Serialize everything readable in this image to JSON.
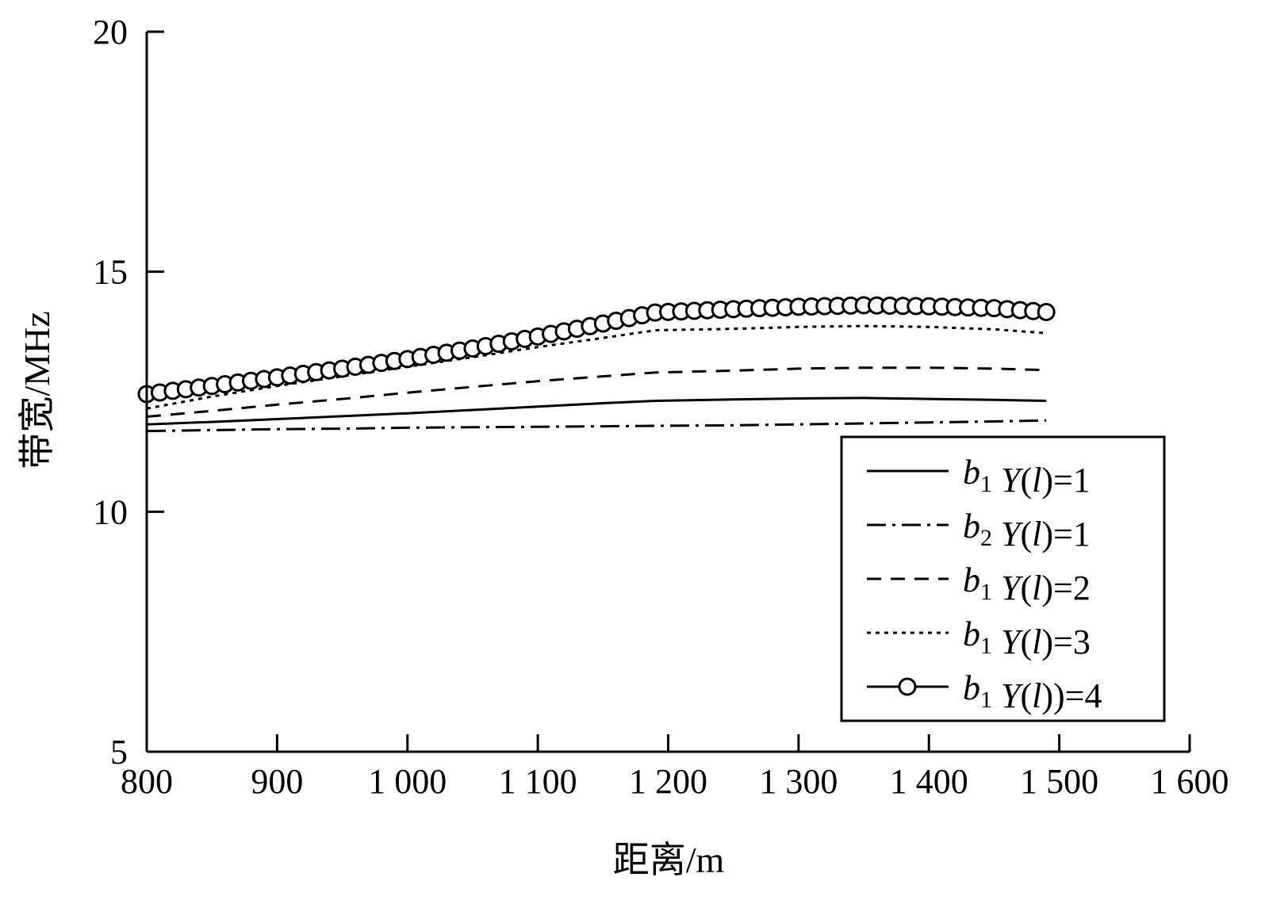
{
  "chart_data": {
    "type": "line",
    "title": "",
    "xlabel": "距离/m",
    "ylabel": "带宽/MHz",
    "xlim": [
      800,
      1600
    ],
    "ylim": [
      5,
      20
    ],
    "xticks": [
      800,
      900,
      1000,
      1100,
      1200,
      1300,
      1400,
      1500,
      1600
    ],
    "xtick_labels": [
      "800",
      "900",
      "1 000",
      "1 100",
      "1 200",
      "1 300",
      "1 400",
      "1 500",
      "1 600"
    ],
    "yticks": [
      5,
      10,
      15,
      20
    ],
    "ytick_labels": [
      "5",
      "10",
      "15",
      "20"
    ],
    "grid": false,
    "legend_position": "bottom-right",
    "x": [
      800,
      850,
      900,
      950,
      1000,
      1050,
      1100,
      1150,
      1190,
      1250,
      1300,
      1350,
      1400,
      1450,
      1490
    ],
    "series": [
      {
        "name": "b1 Y(l)=1",
        "legend": {
          "b": "b",
          "sub": "1",
          "y": "Y",
          "l": "l",
          "rest": ")=1"
        },
        "style": "solid",
        "color": "#000000",
        "values": [
          11.82,
          11.87,
          11.93,
          11.99,
          12.05,
          12.12,
          12.19,
          12.26,
          12.31,
          12.34,
          12.36,
          12.37,
          12.35,
          12.33,
          12.31
        ]
      },
      {
        "name": "b2 Y(l)=1",
        "legend": {
          "b": "b",
          "sub": "2",
          "y": "Y",
          "l": "l",
          "rest": ")=1"
        },
        "style": "dashdot",
        "color": "#000000",
        "values": [
          11.68,
          11.7,
          11.72,
          11.73,
          11.75,
          11.76,
          11.77,
          11.78,
          11.79,
          11.8,
          11.82,
          11.84,
          11.86,
          11.88,
          11.9
        ]
      },
      {
        "name": "b1 Y(l)=2",
        "legend": {
          "b": "b",
          "sub": "1",
          "y": "Y",
          "l": "l",
          "rest": ")=2"
        },
        "style": "dashed",
        "color": "#000000",
        "values": [
          11.98,
          12.1,
          12.23,
          12.35,
          12.48,
          12.6,
          12.72,
          12.82,
          12.9,
          12.94,
          12.98,
          13.0,
          13.0,
          12.98,
          12.95
        ]
      },
      {
        "name": "b1 Y(l)=3",
        "legend": {
          "b": "b",
          "sub": "1",
          "y": "Y",
          "l": "l",
          "rest": ")=3"
        },
        "style": "dotted",
        "color": "#000000",
        "values": [
          12.15,
          12.4,
          12.62,
          12.82,
          13.02,
          13.22,
          13.43,
          13.62,
          13.78,
          13.81,
          13.85,
          13.87,
          13.85,
          13.8,
          13.72
        ]
      },
      {
        "name": "b1 Y(l))=4",
        "legend": {
          "b": "b",
          "sub": "1",
          "y": "Y",
          "l": "l",
          "rest": "))=4"
        },
        "style": "solid-circle",
        "color": "#000000",
        "values": [
          12.45,
          12.62,
          12.8,
          12.98,
          13.18,
          13.4,
          13.65,
          13.92,
          14.15,
          14.22,
          14.27,
          14.3,
          14.28,
          14.24,
          14.16
        ]
      }
    ]
  }
}
